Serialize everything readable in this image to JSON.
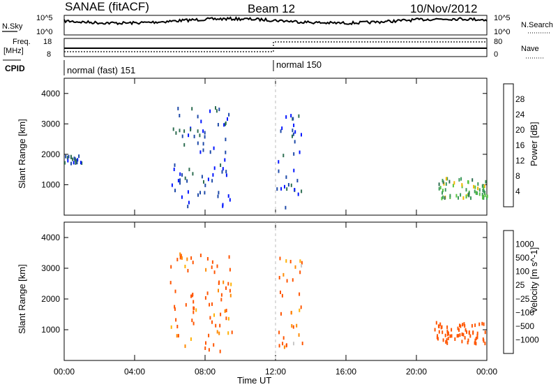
{
  "header": {
    "station": "SANAE (fitACF)",
    "beam": "Beam 12",
    "date": "10/Nov/2012"
  },
  "noise_panel": {
    "left_label": "N.Sky",
    "right_label": "N.Search",
    "left_ticks": [
      "10^5",
      "10^0"
    ],
    "right_ticks": [
      "10^5",
      "10^0"
    ]
  },
  "freq_panel": {
    "left_label_1": "Freq.",
    "left_label_2": "[MHz]",
    "right_label": "Nave",
    "left_ticks": [
      "18",
      "8"
    ],
    "right_ticks": [
      "80",
      "0"
    ]
  },
  "cpid_panel": {
    "label": "CPID",
    "modes": [
      {
        "name": "normal (fast) 151",
        "start_hour": 0
      },
      {
        "name": "normal 150",
        "start_hour": 12
      }
    ]
  },
  "colors": {
    "power_scale": [
      "#0015ff",
      "#1f4aa8",
      "#2e6e52",
      "#3c9a5a",
      "#56c441",
      "#f0b800",
      "#f7a000",
      "#ff7a00",
      "#ff4500",
      "#ff0000"
    ],
    "velocity_scale": [
      "#ff0000",
      "#ff5500",
      "#ff8a00",
      "#ffb000",
      "#c8c8c8",
      "#2ea84a",
      "#2a6a8a",
      "#2046b0"
    ]
  },
  "chart_data": [
    {
      "type": "heatmap",
      "name": "power",
      "xlabel": "Time UT",
      "ylabel": "Slant Range [km]",
      "x_ticks": [
        "00:00",
        "04:00",
        "08:00",
        "12:00",
        "16:00",
        "20:00",
        "00:00"
      ],
      "xlim_hours": [
        0,
        24
      ],
      "ylim": [
        0,
        4500
      ],
      "y_ticks": [
        1000,
        2000,
        3000,
        4000
      ],
      "colorbar": {
        "label": "Power [dB]",
        "ticks": [
          "4",
          "8",
          "12",
          "16",
          "20",
          "24",
          "28"
        ],
        "range": [
          0,
          30
        ]
      },
      "features": [
        {
          "desc": "sparse blue echoes 00:00-01:00",
          "t": [
            0.0,
            1.0
          ],
          "range": [
            1750,
            2000
          ],
          "level_db": 5
        },
        {
          "desc": "scattered echoes 06:00-09:30",
          "t": [
            6.0,
            9.5
          ],
          "range": [
            300,
            3600
          ],
          "level_db": 4
        },
        {
          "desc": "dense scatter 12:00-13:30",
          "t": [
            12.0,
            13.5
          ],
          "range": [
            300,
            3500
          ],
          "level_db": 5
        },
        {
          "desc": "ionospheric band 21:00-24:00",
          "t": [
            21.0,
            24.0
          ],
          "range": [
            600,
            1300
          ],
          "level_db": 12
        }
      ]
    },
    {
      "type": "heatmap",
      "name": "velocity",
      "xlabel": "Time UT",
      "ylabel": "Slant Range [km]",
      "x_ticks": [
        "00:00",
        "04:00",
        "08:00",
        "12:00",
        "16:00",
        "20:00",
        "00:00"
      ],
      "xlim_hours": [
        0,
        24
      ],
      "ylim": [
        0,
        4500
      ],
      "y_ticks": [
        1000,
        2000,
        3000,
        4000
      ],
      "colorbar": {
        "label": "Velocity [m s^-1]",
        "ticks": [
          "1000",
          "500",
          "100",
          "25",
          "−25",
          "−100",
          "−500",
          "−1000"
        ]
      },
      "features": [
        {
          "desc": "scattered echoes 06:00-09:30",
          "t": [
            6.0,
            9.5
          ],
          "range": [
            300,
            3600
          ],
          "velocity": -200
        },
        {
          "desc": "dense scatter 12:00-13:30",
          "t": [
            12.0,
            13.5
          ],
          "range": [
            300,
            3500
          ],
          "velocity": -150
        },
        {
          "desc": "band 21:00-24:00",
          "t": [
            21.0,
            24.0
          ],
          "range": [
            600,
            1300
          ],
          "velocity": -300
        }
      ]
    }
  ]
}
